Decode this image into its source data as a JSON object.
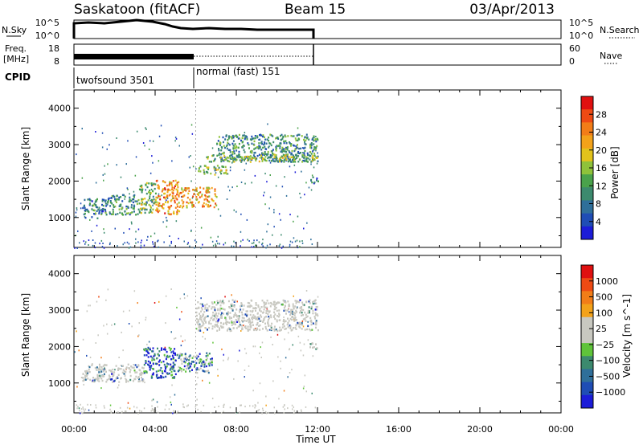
{
  "header": {
    "station": "Saskatoon (fitACF)",
    "beam": "Beam 15",
    "date": "03/Apr/2013"
  },
  "noise_panel": {
    "left_label": "N.Sky",
    "right_label": "N.Search",
    "left_ticks": [
      "10^5",
      "10^0"
    ],
    "right_ticks": [
      "10^5",
      "10^0"
    ]
  },
  "freq_panel": {
    "left_label_1": "Freq.",
    "left_label_2": "[MHz]",
    "right_label": "Nave",
    "left_ticks": [
      "18",
      "8"
    ],
    "right_ticks": [
      "60",
      "0"
    ]
  },
  "cpid": {
    "label": "CPID",
    "segments": [
      {
        "name": "twofsound 3501",
        "start_hour": 0,
        "end_hour": 6
      },
      {
        "name": "normal (fast) 151",
        "start_hour": 6,
        "end_hour": 24
      }
    ]
  },
  "time_axis": {
    "label": "Time UT",
    "ticks": [
      "00:00",
      "04:00",
      "08:00",
      "12:00",
      "16:00",
      "20:00",
      "00:00"
    ]
  },
  "colors": {
    "power_scale": [
      "#1c1cd8",
      "#1f4db5",
      "#2f6f9a",
      "#3c8a6e",
      "#4aa24b",
      "#8fc23a",
      "#e2c21c",
      "#f3a21a",
      "#f27d18",
      "#ee4a14",
      "#e01010"
    ],
    "velocity_scale": [
      "#e01010",
      "#ee4a14",
      "#f27d18",
      "#f3a21a",
      "#c8c8c0",
      "#c8c8c0",
      "#5fc43a",
      "#3c8a6e",
      "#2f6f9a",
      "#1f4db5",
      "#1c1cd8"
    ],
    "ground_scatter": "#c8c8c0"
  },
  "chart_data": [
    {
      "type": "heatmap",
      "name": "power",
      "ylabel": "Slant Range [km]",
      "ylim": [
        180,
        4500
      ],
      "yticks": [
        1000,
        2000,
        3000,
        4000
      ],
      "xlim": [
        0,
        24
      ],
      "colorbar": {
        "label": "Power [dB]",
        "ticks": [
          "28",
          "24",
          "20",
          "16",
          "12",
          "8",
          "4"
        ],
        "range": [
          0,
          30
        ]
      },
      "bands": [
        {
          "x0": 0.4,
          "x1": 1.6,
          "y0": 1000,
          "y1": 1550,
          "level": 0.25
        },
        {
          "x0": 1.6,
          "x1": 3.2,
          "y0": 1100,
          "y1": 1650,
          "level": 0.3
        },
        {
          "x0": 3.2,
          "x1": 4.0,
          "y0": 1150,
          "y1": 2000,
          "level": 0.45
        },
        {
          "x0": 4.0,
          "x1": 5.2,
          "y0": 1100,
          "y1": 2050,
          "level": 0.75
        },
        {
          "x0": 5.2,
          "x1": 7.0,
          "y0": 1300,
          "y1": 1850,
          "level": 0.7
        },
        {
          "x0": 6.0,
          "x1": 7.5,
          "y0": 2200,
          "y1": 2450,
          "level": 0.45
        },
        {
          "x0": 7.0,
          "x1": 12.0,
          "y0": 2550,
          "y1": 3300,
          "level": 0.3
        },
        {
          "x0": 6.5,
          "x1": 12.0,
          "y0": 2550,
          "y1": 2750,
          "level": 0.45
        },
        {
          "x0": 11.6,
          "x1": 12.0,
          "y0": 1950,
          "y1": 2150,
          "level": 0.2
        }
      ]
    },
    {
      "type": "heatmap",
      "name": "velocity",
      "ylabel": "Slant Range [km]",
      "ylim": [
        180,
        4500
      ],
      "yticks": [
        1000,
        2000,
        3000,
        4000
      ],
      "xlim": [
        0,
        24
      ],
      "colorbar": {
        "label": "Velocity [m s^-1]",
        "ticks": [
          "1000",
          "500",
          "100",
          "25",
          "−25",
          "−100",
          "−500",
          "−1000"
        ],
        "range": [
          -1200,
          1200
        ]
      },
      "bands": [
        {
          "x0": 0.4,
          "x1": 3.4,
          "y0": 1050,
          "y1": 1550,
          "level": 0.5,
          "ground": true
        },
        {
          "x0": 3.4,
          "x1": 5.0,
          "y0": 1150,
          "y1": 2000,
          "level": 0.85
        },
        {
          "x0": 5.0,
          "x1": 6.8,
          "y0": 1300,
          "y1": 1850,
          "level": 0.7
        },
        {
          "x0": 6.0,
          "x1": 12.0,
          "y0": 2450,
          "y1": 3300,
          "level": 0.5,
          "ground": true
        },
        {
          "x0": 11.6,
          "x1": 12.0,
          "y0": 1950,
          "y1": 2150,
          "level": 0.5,
          "ground": true
        }
      ]
    }
  ]
}
